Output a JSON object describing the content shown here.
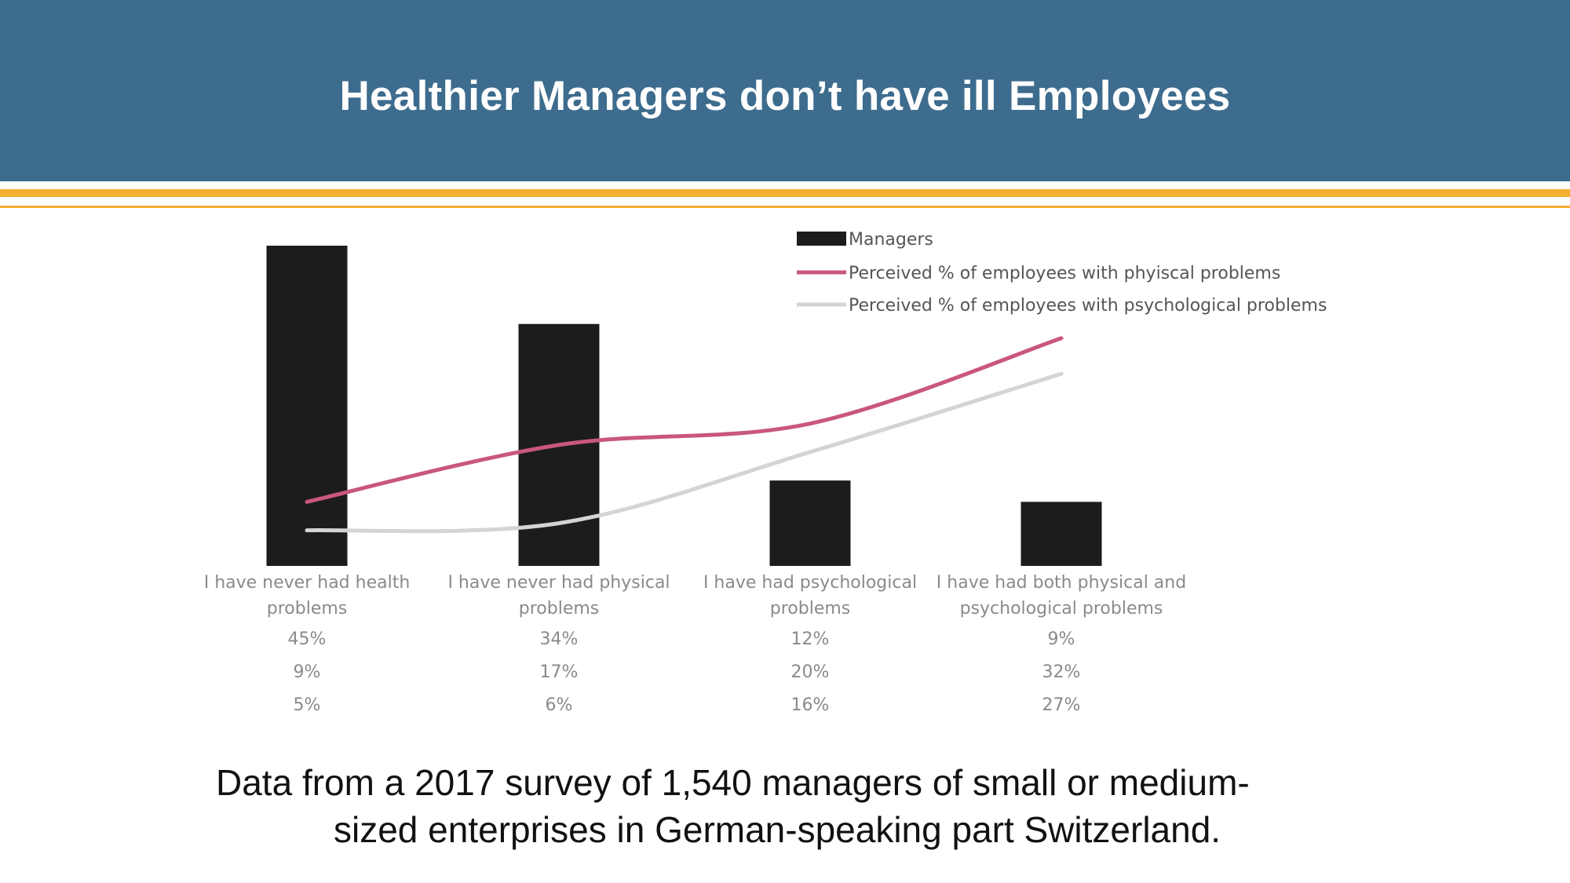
{
  "slide": {
    "title": "Healthier Managers don’t have ill Employees",
    "caption_line1": "Data from a 2017 survey of 1,540 managers of small or medium-",
    "caption_line2": "sized enterprises in German-speaking part Switzerland."
  },
  "colors": {
    "header": "#3d6c8e",
    "accent_rule": "#f2b02e",
    "bar": "#1c1c1c",
    "physical_line": "#c9577c",
    "psychological_line": "#d4d4d4",
    "tick_text": "#8a8a8a"
  },
  "chart_data": {
    "type": "bar",
    "categories": [
      [
        "I have never had health",
        "problems"
      ],
      [
        "I have never had physical",
        "problems"
      ],
      [
        "I have had psychological",
        "problems"
      ],
      [
        "I have had both physical and",
        "psychological problems"
      ]
    ],
    "series": [
      {
        "name": "Managers",
        "kind": "bar",
        "labels": [
          "45%",
          "34%",
          "12%",
          "9%"
        ],
        "values": [
          45,
          34,
          12,
          9
        ]
      },
      {
        "name": "Perceived % of employees with phyiscal problems",
        "kind": "line",
        "labels": [
          "9%",
          "17%",
          "20%",
          "32%"
        ],
        "values": [
          9,
          17,
          20,
          32
        ]
      },
      {
        "name": "Perceived % of employees with psychological problems",
        "kind": "line",
        "labels": [
          "5%",
          "6%",
          "16%",
          "27%"
        ],
        "values": [
          5,
          6,
          16,
          27
        ]
      }
    ],
    "ylim": [
      0,
      45
    ],
    "legend_position": "top-right",
    "grid": false
  }
}
